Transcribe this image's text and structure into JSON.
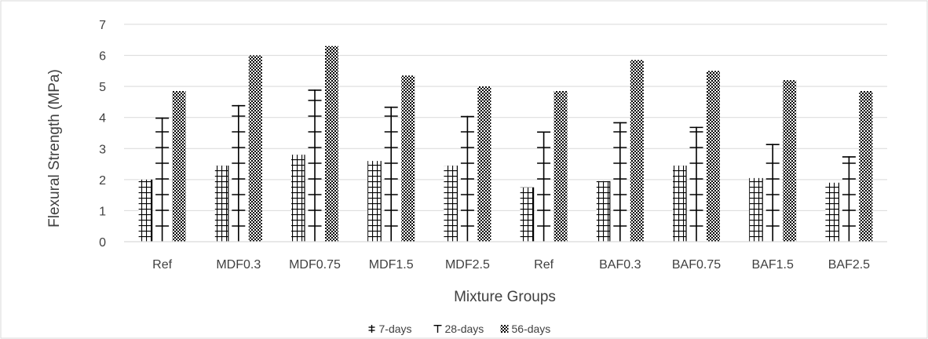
{
  "chart_data": {
    "type": "bar",
    "title": "",
    "xlabel": "Mixture Groups",
    "ylabel": "Flexural Strength (MPa)",
    "ylim": [
      0,
      7
    ],
    "yticks": [
      0,
      1,
      2,
      3,
      4,
      5,
      6,
      7
    ],
    "grid": true,
    "legend_position": "bottom",
    "categories": [
      "Ref",
      "MDF0.3",
      "MDF0.75",
      "MDF1.5",
      "MDF2.5",
      "Ref",
      "BAF0.3",
      "BAF0.75",
      "BAF1.5",
      "BAF2.5"
    ],
    "series": [
      {
        "name": "7-days",
        "pattern": "grid",
        "values": [
          2.0,
          2.45,
          2.8,
          2.6,
          2.45,
          1.75,
          1.95,
          2.45,
          2.05,
          1.9
        ]
      },
      {
        "name": "28-days",
        "pattern": "cross",
        "values": [
          4.0,
          4.4,
          4.9,
          4.35,
          4.05,
          3.55,
          3.85,
          3.7,
          3.15,
          2.75
        ]
      },
      {
        "name": "56-days",
        "pattern": "checker",
        "values": [
          4.85,
          6.0,
          6.3,
          5.35,
          5.0,
          4.85,
          5.85,
          5.5,
          5.2,
          4.85
        ]
      }
    ],
    "colors": {
      "ink": "#000000",
      "grid": "#d9d9d9",
      "text": "#404040",
      "frame": "#d9d9d9"
    }
  }
}
